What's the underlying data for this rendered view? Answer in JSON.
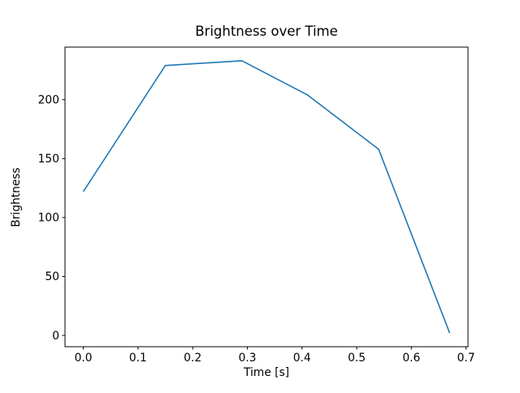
{
  "figure": {
    "background": "#ffffff"
  },
  "chart_data": {
    "type": "line",
    "title": "Brightness over Time",
    "xlabel": "Time [s]",
    "ylabel": "Brightness",
    "x": [
      0.0,
      0.15,
      0.29,
      0.41,
      0.54,
      0.67
    ],
    "y": [
      122,
      229,
      233,
      204,
      158,
      2
    ],
    "xlim": [
      -0.0335,
      0.7035
    ],
    "ylim": [
      -9.6,
      244.6
    ],
    "xticks": [
      0.0,
      0.1,
      0.2,
      0.3,
      0.4,
      0.5,
      0.6,
      0.7
    ],
    "xtick_labels": [
      "0.0",
      "0.1",
      "0.2",
      "0.3",
      "0.4",
      "0.5",
      "0.6",
      "0.7"
    ],
    "yticks": [
      0,
      50,
      100,
      150,
      200
    ],
    "ytick_labels": [
      "0",
      "50",
      "100",
      "150",
      "200"
    ],
    "line_color": "#1f77b4",
    "axis_color": "#000000",
    "grid": false
  }
}
